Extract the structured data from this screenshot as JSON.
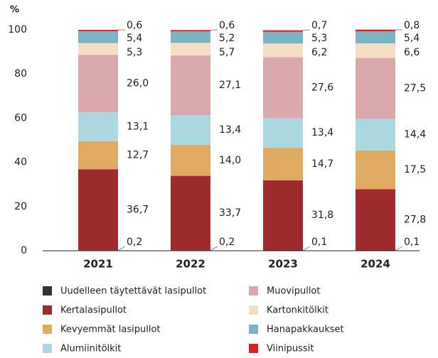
{
  "chart_data": {
    "type": "stacked-bar",
    "y_label": "%",
    "categories": [
      "2021",
      "2022",
      "2023",
      "2024"
    ],
    "ylim": [
      0,
      100
    ],
    "yticks": [
      0,
      20,
      40,
      60,
      80,
      100
    ],
    "series": [
      {
        "name": "Uudelleen täytettävät lasipullot",
        "color": "#333333",
        "values": [
          0.2,
          0.2,
          0.1,
          0.1
        ],
        "value_labels": [
          "0,2",
          "0,2",
          "0,1",
          "0,1"
        ]
      },
      {
        "name": "Kertalasipullot",
        "color": "#9e2b2d",
        "values": [
          36.7,
          33.7,
          31.8,
          27.8
        ],
        "value_labels": [
          "36,7",
          "33,7",
          "31,8",
          "27,8"
        ]
      },
      {
        "name": "Kevyemmät lasipullot",
        "color": "#e0aa63",
        "values": [
          12.7,
          14.0,
          14.7,
          17.5
        ],
        "value_labels": [
          "12,7",
          "14,0",
          "14,7",
          "17,5"
        ]
      },
      {
        "name": "Alumiinitölkit",
        "color": "#acd8e0",
        "values": [
          13.1,
          13.4,
          13.4,
          14.4
        ],
        "value_labels": [
          "13,1",
          "13,4",
          "13,4",
          "14,4"
        ]
      },
      {
        "name": "Muovipullot",
        "color": "#d9a9ad",
        "values": [
          26.0,
          27.1,
          27.6,
          27.5
        ],
        "value_labels": [
          "26,0",
          "27,1",
          "27,6",
          "27,5"
        ]
      },
      {
        "name": "Kartonkitölkit",
        "color": "#f5dfc4",
        "values": [
          5.3,
          5.7,
          6.2,
          6.6
        ],
        "value_labels": [
          "5,3",
          "5,7",
          "6,2",
          "6,6"
        ]
      },
      {
        "name": "Hanapakkaukset",
        "color": "#7ab3c4",
        "values": [
          5.4,
          5.2,
          5.3,
          5.4
        ],
        "value_labels": [
          "5,4",
          "5,2",
          "5,3",
          "5,4"
        ]
      },
      {
        "name": "Viinipussit",
        "color": "#e02020",
        "values": [
          0.6,
          0.6,
          0.7,
          0.8
        ],
        "value_labels": [
          "0,6",
          "0,6",
          "0,7",
          "0,8"
        ]
      }
    ]
  }
}
